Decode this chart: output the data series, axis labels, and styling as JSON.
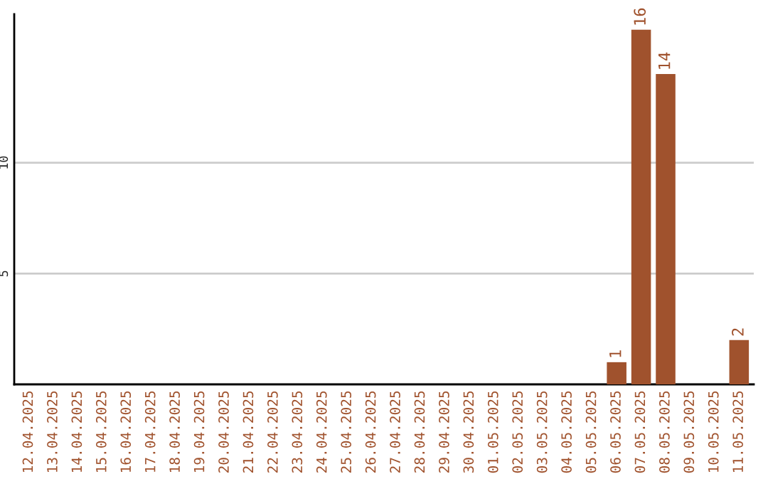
{
  "chart_data": {
    "type": "bar",
    "categories": [
      "12.04.2025",
      "13.04.2025",
      "14.04.2025",
      "15.04.2025",
      "16.04.2025",
      "17.04.2025",
      "18.04.2025",
      "19.04.2025",
      "20.04.2025",
      "21.04.2025",
      "22.04.2025",
      "23.04.2025",
      "24.04.2025",
      "25.04.2025",
      "26.04.2025",
      "27.04.2025",
      "28.04.2025",
      "29.04.2025",
      "30.04.2025",
      "01.05.2025",
      "02.05.2025",
      "03.05.2025",
      "04.05.2025",
      "05.05.2025",
      "06.05.2025",
      "07.05.2025",
      "08.05.2025",
      "09.05.2025",
      "10.05.2025",
      "11.05.2025"
    ],
    "values": [
      0,
      0,
      0,
      0,
      0,
      0,
      0,
      0,
      0,
      0,
      0,
      0,
      0,
      0,
      0,
      0,
      0,
      0,
      0,
      0,
      0,
      0,
      0,
      0,
      1,
      16,
      14,
      0,
      0,
      2
    ],
    "value_labels": [
      null,
      null,
      null,
      null,
      null,
      null,
      null,
      null,
      null,
      null,
      null,
      null,
      null,
      null,
      null,
      null,
      null,
      null,
      null,
      null,
      null,
      null,
      null,
      null,
      "1",
      "16",
      "14",
      null,
      null,
      "2"
    ],
    "color": "#a0522d",
    "ylim": [
      0,
      16.7
    ],
    "yticks": [
      5,
      10
    ],
    "grid": "y"
  }
}
